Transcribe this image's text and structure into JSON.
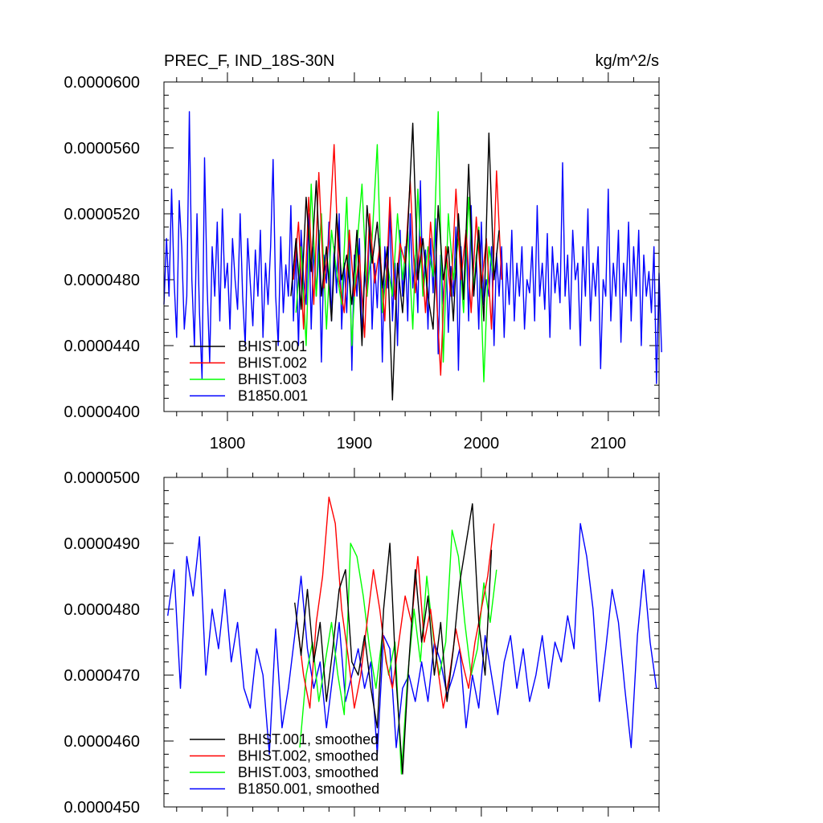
{
  "chart_data": [
    {
      "type": "line",
      "title": "PREC_F, IND_18S-30N",
      "units": "kg/m^2/s",
      "xlim": [
        1750,
        2140
      ],
      "ylim": [
        4e-05,
        6e-05
      ],
      "x_ticks": [
        1800,
        1900,
        2000,
        2100
      ],
      "x_tick_labels": [
        "1800",
        "1900",
        "2000",
        "2100"
      ],
      "y_ticks": [
        4e-05,
        4.4e-05,
        4.8e-05,
        5.2e-05,
        5.6e-05,
        6e-05
      ],
      "y_tick_labels": [
        "0.0000400",
        "0.0000440",
        "0.0000480",
        "0.0000520",
        "0.0000560",
        "0.0000600"
      ],
      "legend_position": "bottom-left",
      "series": [
        {
          "name": "BHIST.001",
          "color": "#000000",
          "x_start": 1850,
          "x_step": 4,
          "values": [
            4.7e-05,
            5.05e-05,
            4.62e-05,
            5.3e-05,
            4.85e-05,
            5.4e-05,
            4.7e-05,
            5e-05,
            4.55e-05,
            5.2e-05,
            4.8e-05,
            4.95e-05,
            4.65e-05,
            5.1e-05,
            4.4e-05,
            5.25e-05,
            4.9e-05,
            5.15e-05,
            4.75e-05,
            5e-05,
            4.07e-05,
            4.9e-05,
            4.6e-05,
            5.1e-05,
            5.75e-05,
            4.8e-05,
            5.05e-05,
            4.7e-05,
            4.5e-05,
            5.25e-05,
            4.8e-05,
            5e-05,
            4.55e-05,
            5.2e-05,
            4.68e-05,
            5.5e-05,
            4.7e-05,
            5.1e-05,
            4.55e-05,
            5.69e-05,
            4.8e-05,
            5.1e-05
          ]
        },
        {
          "name": "BHIST.002",
          "color": "#ff0000",
          "x_start": 1852,
          "x_step": 4,
          "values": [
            4.8e-05,
            5.15e-05,
            4.5e-05,
            5.3e-05,
            4.65e-05,
            5.45e-05,
            4.75e-05,
            5.05e-05,
            5.62e-05,
            4.8e-05,
            4.6e-05,
            5.1e-05,
            4.7e-05,
            4.95e-05,
            4.45e-05,
            5.2e-05,
            4.78e-05,
            5e-05,
            4.55e-05,
            5.3e-05,
            4.68e-05,
            5.02e-05,
            4.9e-05,
            5.4e-05,
            4.72e-05,
            5.06e-05,
            4.6e-05,
            5.15e-05,
            4.8e-05,
            4.22e-05,
            5e-05,
            4.7e-05,
            5.35e-05,
            4.8e-05,
            5.1e-05,
            4.6e-05,
            5.18e-05,
            4.75e-05,
            5.05e-05,
            4.5e-05,
            5.46e-05,
            4.8e-05
          ]
        },
        {
          "name": "BHIST.003",
          "color": "#00ff00",
          "x_start": 1854,
          "x_step": 4,
          "values": [
            4.6e-05,
            5e-05,
            4.4e-05,
            5.38e-05,
            4.7e-05,
            5.2e-05,
            4.5e-05,
            5.1e-05,
            4.85e-05,
            4.65e-05,
            5.3e-05,
            4.4e-05,
            5e-05,
            5.38e-05,
            4.7e-05,
            5.05e-05,
            5.62e-05,
            4.6e-05,
            4.9e-05,
            4.7e-05,
            5.2e-05,
            4.8e-05,
            5.1e-05,
            4.5e-05,
            5.35e-05,
            4.7e-05,
            5e-05,
            4.82e-05,
            5.82e-05,
            4.3e-05,
            5.2e-05,
            4.8e-05,
            5.05e-05,
            4.6e-05,
            5.3e-05,
            4.75e-05,
            5.12e-05,
            4.18e-05,
            5e-05,
            4.8e-05
          ]
        },
        {
          "name": "B1850.001",
          "color": "#0000ff",
          "x_start": 1750,
          "x_step": 2,
          "values": [
            4.65e-05,
            5.05e-05,
            4.7e-05,
            5.35e-05,
            4.8e-05,
            4.45e-05,
            5.28e-05,
            5e-05,
            4.5e-05,
            4.7e-05,
            5.82e-05,
            4.8e-05,
            4.4e-05,
            5.2e-05,
            4.6e-05,
            4.2e-05,
            5.54e-05,
            4.76e-05,
            4.3e-05,
            5e-05,
            4.7e-05,
            5.15e-05,
            4.55e-05,
            5.23e-05,
            4.75e-05,
            4.9e-05,
            4.5e-05,
            5.05e-05,
            4.8e-05,
            4.62e-05,
            5.2e-05,
            4.7e-05,
            4.4e-05,
            5.05e-05,
            4.78e-05,
            4.52e-05,
            4.98e-05,
            4.7e-05,
            5.1e-05,
            4.45e-05,
            4.9e-05,
            4.65e-05,
            5e-05,
            5.53e-05,
            4.7e-05,
            4.4e-05,
            5.06e-05,
            4.6e-05,
            4.89e-05,
            4.7e-05,
            5.25e-05,
            4.55e-05,
            5e-05,
            4.4e-05,
            5.1e-05,
            4.8e-05,
            4.65e-05,
            5.2e-05,
            4.5e-05,
            5e-05,
            4.7e-05,
            5.1e-05,
            4.3e-05,
            4.95e-05,
            4.78e-05,
            5.15e-05,
            4.55e-05,
            5e-05,
            4.72e-05,
            5.2e-05,
            4.5e-05,
            4.9e-05,
            4.6e-05,
            5.1e-05,
            4.25e-05,
            4.95e-05,
            4.7e-05,
            5.05e-05,
            4.45e-05,
            4.85e-05,
            4.7e-05,
            5.15e-05,
            4.5e-05,
            4.9e-05,
            4.63e-05,
            5.05e-05,
            4.3e-05,
            5e-05,
            4.75e-05,
            5.25e-05,
            4.55e-05,
            4.9e-05,
            4.4e-05,
            5.1e-05,
            4.7e-05,
            5e-05,
            4.55e-05,
            5.2e-05,
            4.75e-05,
            4.95e-05,
            4.6e-05,
            5.4e-05,
            4.7e-05,
            4.98e-05,
            4.5e-05,
            5.05e-05,
            4.72e-05,
            5.17e-05,
            4.35e-05,
            4.95e-05,
            4.65e-05,
            5e-05,
            4.48e-05,
            4.88e-05,
            4.7e-05,
            5.12e-05,
            4.25e-05,
            5e-05,
            4.68e-05,
            5.1e-05,
            4.55e-05,
            5.25e-05,
            4.7e-05,
            4.95e-05,
            4.5e-05,
            5.15e-05,
            4.65e-05,
            4.8e-05,
            4.7e-05,
            5e-05,
            4.4e-05,
            4.96e-05,
            4.7e-05,
            5e-05,
            4.45e-05,
            4.9e-05,
            4.65e-05,
            5.1e-05,
            4.55e-05,
            4.9e-05,
            4.7e-05,
            5e-05,
            4.5e-05,
            4.8e-05,
            4.72e-05,
            5e-05,
            4.55e-05,
            5.25e-05,
            4.7e-05,
            4.9e-05,
            4.62e-05,
            5.08e-05,
            4.45e-05,
            5e-05,
            4.72e-05,
            4.9e-05,
            4.66e-05,
            5.51e-05,
            4.7e-05,
            4.95e-05,
            4.5e-05,
            5.1e-05,
            4.8e-05,
            4.9e-05,
            4.4e-05,
            5e-05,
            4.7e-05,
            5.23e-05,
            4.55e-05,
            4.9e-05,
            4.7e-05,
            5e-05,
            4.26e-05,
            4.8e-05,
            4.7e-05,
            5.35e-05,
            4.55e-05,
            4.9e-05,
            4.7e-05,
            5.1e-05,
            4.42e-05,
            4.9e-05,
            4.7e-05,
            5.15e-05,
            4.55e-05,
            5e-05,
            4.7e-05,
            5.1e-05,
            4.4e-05,
            4.95e-05,
            4.7e-05,
            4.85e-05,
            4.6e-05,
            5e-05,
            4.17e-05,
            4.84e-05,
            4.36e-05
          ]
        }
      ]
    },
    {
      "type": "line",
      "xlim": [
        1750,
        2140
      ],
      "ylim": [
        4.5e-05,
        5e-05
      ],
      "x_ticks": [
        1800,
        1900,
        2000,
        2100
      ],
      "y_ticks": [
        4.5e-05,
        4.6e-05,
        4.7e-05,
        4.8e-05,
        4.9e-05,
        5e-05
      ],
      "y_tick_labels": [
        "0.0000450",
        "0.0000460",
        "0.0000470",
        "0.0000480",
        "0.0000490",
        "0.0000500"
      ],
      "legend_position": "bottom-left",
      "series": [
        {
          "name": "BHIST.001, smoothed",
          "color": "#000000",
          "x": [
            1853,
            1858,
            1863,
            1868,
            1873,
            1878,
            1883,
            1888,
            1893,
            1898,
            1903,
            1908,
            1913,
            1918,
            1923,
            1928,
            1933,
            1938,
            1943,
            1948,
            1953,
            1958,
            1963,
            1968,
            1973,
            1978,
            1983,
            1988,
            1993,
            1998,
            2003,
            2008
          ],
          "values": [
            4.81e-05,
            4.73e-05,
            4.83e-05,
            4.72e-05,
            4.78e-05,
            4.66e-05,
            4.74e-05,
            4.83e-05,
            4.86e-05,
            4.72e-05,
            4.7e-05,
            4.76e-05,
            4.68e-05,
            4.62e-05,
            4.8e-05,
            4.9e-05,
            4.69e-05,
            4.55e-05,
            4.72e-05,
            4.86e-05,
            4.75e-05,
            4.82e-05,
            4.7e-05,
            4.78e-05,
            4.66e-05,
            4.74e-05,
            4.84e-05,
            4.9e-05,
            4.96e-05,
            4.78e-05,
            4.7e-05,
            4.89e-05
          ]
        },
        {
          "name": "BHIST.002, smoothed",
          "color": "#ff0000",
          "x": [
            1855,
            1860,
            1865,
            1870,
            1875,
            1880,
            1885,
            1890,
            1895,
            1900,
            1905,
            1910,
            1915,
            1920,
            1925,
            1930,
            1935,
            1940,
            1945,
            1950,
            1955,
            1960,
            1965,
            1970,
            1975,
            1980,
            1985,
            1990,
            1995,
            2000,
            2005,
            2010
          ],
          "values": [
            4.78e-05,
            4.7e-05,
            4.65e-05,
            4.78e-05,
            4.85e-05,
            4.97e-05,
            4.93e-05,
            4.8e-05,
            4.73e-05,
            4.65e-05,
            4.7e-05,
            4.78e-05,
            4.86e-05,
            4.8e-05,
            4.72e-05,
            4.68e-05,
            4.75e-05,
            4.82e-05,
            4.78e-05,
            4.88e-05,
            4.75e-05,
            4.8e-05,
            4.72e-05,
            4.65e-05,
            4.7e-05,
            4.77e-05,
            4.72e-05,
            4.68e-05,
            4.75e-05,
            4.8e-05,
            4.85e-05,
            4.93e-05
          ]
        },
        {
          "name": "BHIST.003, smoothed",
          "color": "#00ff00",
          "x": [
            1857,
            1862,
            1867,
            1872,
            1877,
            1882,
            1887,
            1892,
            1897,
            1902,
            1907,
            1912,
            1917,
            1922,
            1927,
            1932,
            1937,
            1942,
            1947,
            1952,
            1957,
            1962,
            1967,
            1972,
            1977,
            1982,
            1987,
            1992,
            1997,
            2002,
            2007,
            2012
          ],
          "values": [
            4.59e-05,
            4.7e-05,
            4.75e-05,
            4.66e-05,
            4.72e-05,
            4.78e-05,
            4.7e-05,
            4.64e-05,
            4.9e-05,
            4.88e-05,
            4.82e-05,
            4.74e-05,
            4.68e-05,
            4.76e-05,
            4.7e-05,
            4.75e-05,
            4.55e-05,
            4.7e-05,
            4.8e-05,
            4.72e-05,
            4.85e-05,
            4.76e-05,
            4.7e-05,
            4.75e-05,
            4.92e-05,
            4.88e-05,
            4.78e-05,
            4.7e-05,
            4.74e-05,
            4.84e-05,
            4.78e-05,
            4.86e-05
          ]
        },
        {
          "name": "B1850.001, smoothed",
          "color": "#0000ff",
          "x": [
            1753,
            1758,
            1763,
            1768,
            1773,
            1778,
            1783,
            1788,
            1793,
            1798,
            1803,
            1808,
            1813,
            1818,
            1823,
            1828,
            1833,
            1838,
            1843,
            1848,
            1853,
            1858,
            1863,
            1868,
            1873,
            1878,
            1883,
            1888,
            1893,
            1898,
            1903,
            1908,
            1913,
            1918,
            1923,
            1928,
            1933,
            1938,
            1943,
            1948,
            1953,
            1958,
            1963,
            1968,
            1973,
            1978,
            1983,
            1988,
            1993,
            1998,
            2003,
            2008,
            2013,
            2018,
            2023,
            2028,
            2033,
            2038,
            2043,
            2048,
            2053,
            2058,
            2063,
            2068,
            2073,
            2078,
            2083,
            2088,
            2093,
            2098,
            2103,
            2108,
            2113,
            2118,
            2123,
            2128,
            2133,
            2138
          ],
          "values": [
            4.79e-05,
            4.86e-05,
            4.68e-05,
            4.88e-05,
            4.82e-05,
            4.91e-05,
            4.7e-05,
            4.8e-05,
            4.74e-05,
            4.83e-05,
            4.72e-05,
            4.78e-05,
            4.68e-05,
            4.65e-05,
            4.74e-05,
            4.7e-05,
            4.58e-05,
            4.77e-05,
            4.62e-05,
            4.68e-05,
            4.76e-05,
            4.85e-05,
            4.74e-05,
            4.68e-05,
            4.72e-05,
            4.62e-05,
            4.7e-05,
            4.78e-05,
            4.66e-05,
            4.7e-05,
            4.74e-05,
            4.68e-05,
            4.72e-05,
            4.58e-05,
            4.76e-05,
            4.74e-05,
            4.59e-05,
            4.68e-05,
            4.7e-05,
            4.66e-05,
            4.72e-05,
            4.66e-05,
            4.75e-05,
            4.72e-05,
            4.67e-05,
            4.7e-05,
            4.74e-05,
            4.62e-05,
            4.7e-05,
            4.65e-05,
            4.76e-05,
            4.7e-05,
            4.64e-05,
            4.72e-05,
            4.76e-05,
            4.68e-05,
            4.74e-05,
            4.66e-05,
            4.7e-05,
            4.76e-05,
            4.68e-05,
            4.75e-05,
            4.72e-05,
            4.79e-05,
            4.74e-05,
            4.93e-05,
            4.88e-05,
            4.8e-05,
            4.66e-05,
            4.74e-05,
            4.83e-05,
            4.78e-05,
            4.68e-05,
            4.59e-05,
            4.76e-05,
            4.86e-05,
            4.75e-05,
            4.68e-05
          ]
        }
      ]
    }
  ]
}
